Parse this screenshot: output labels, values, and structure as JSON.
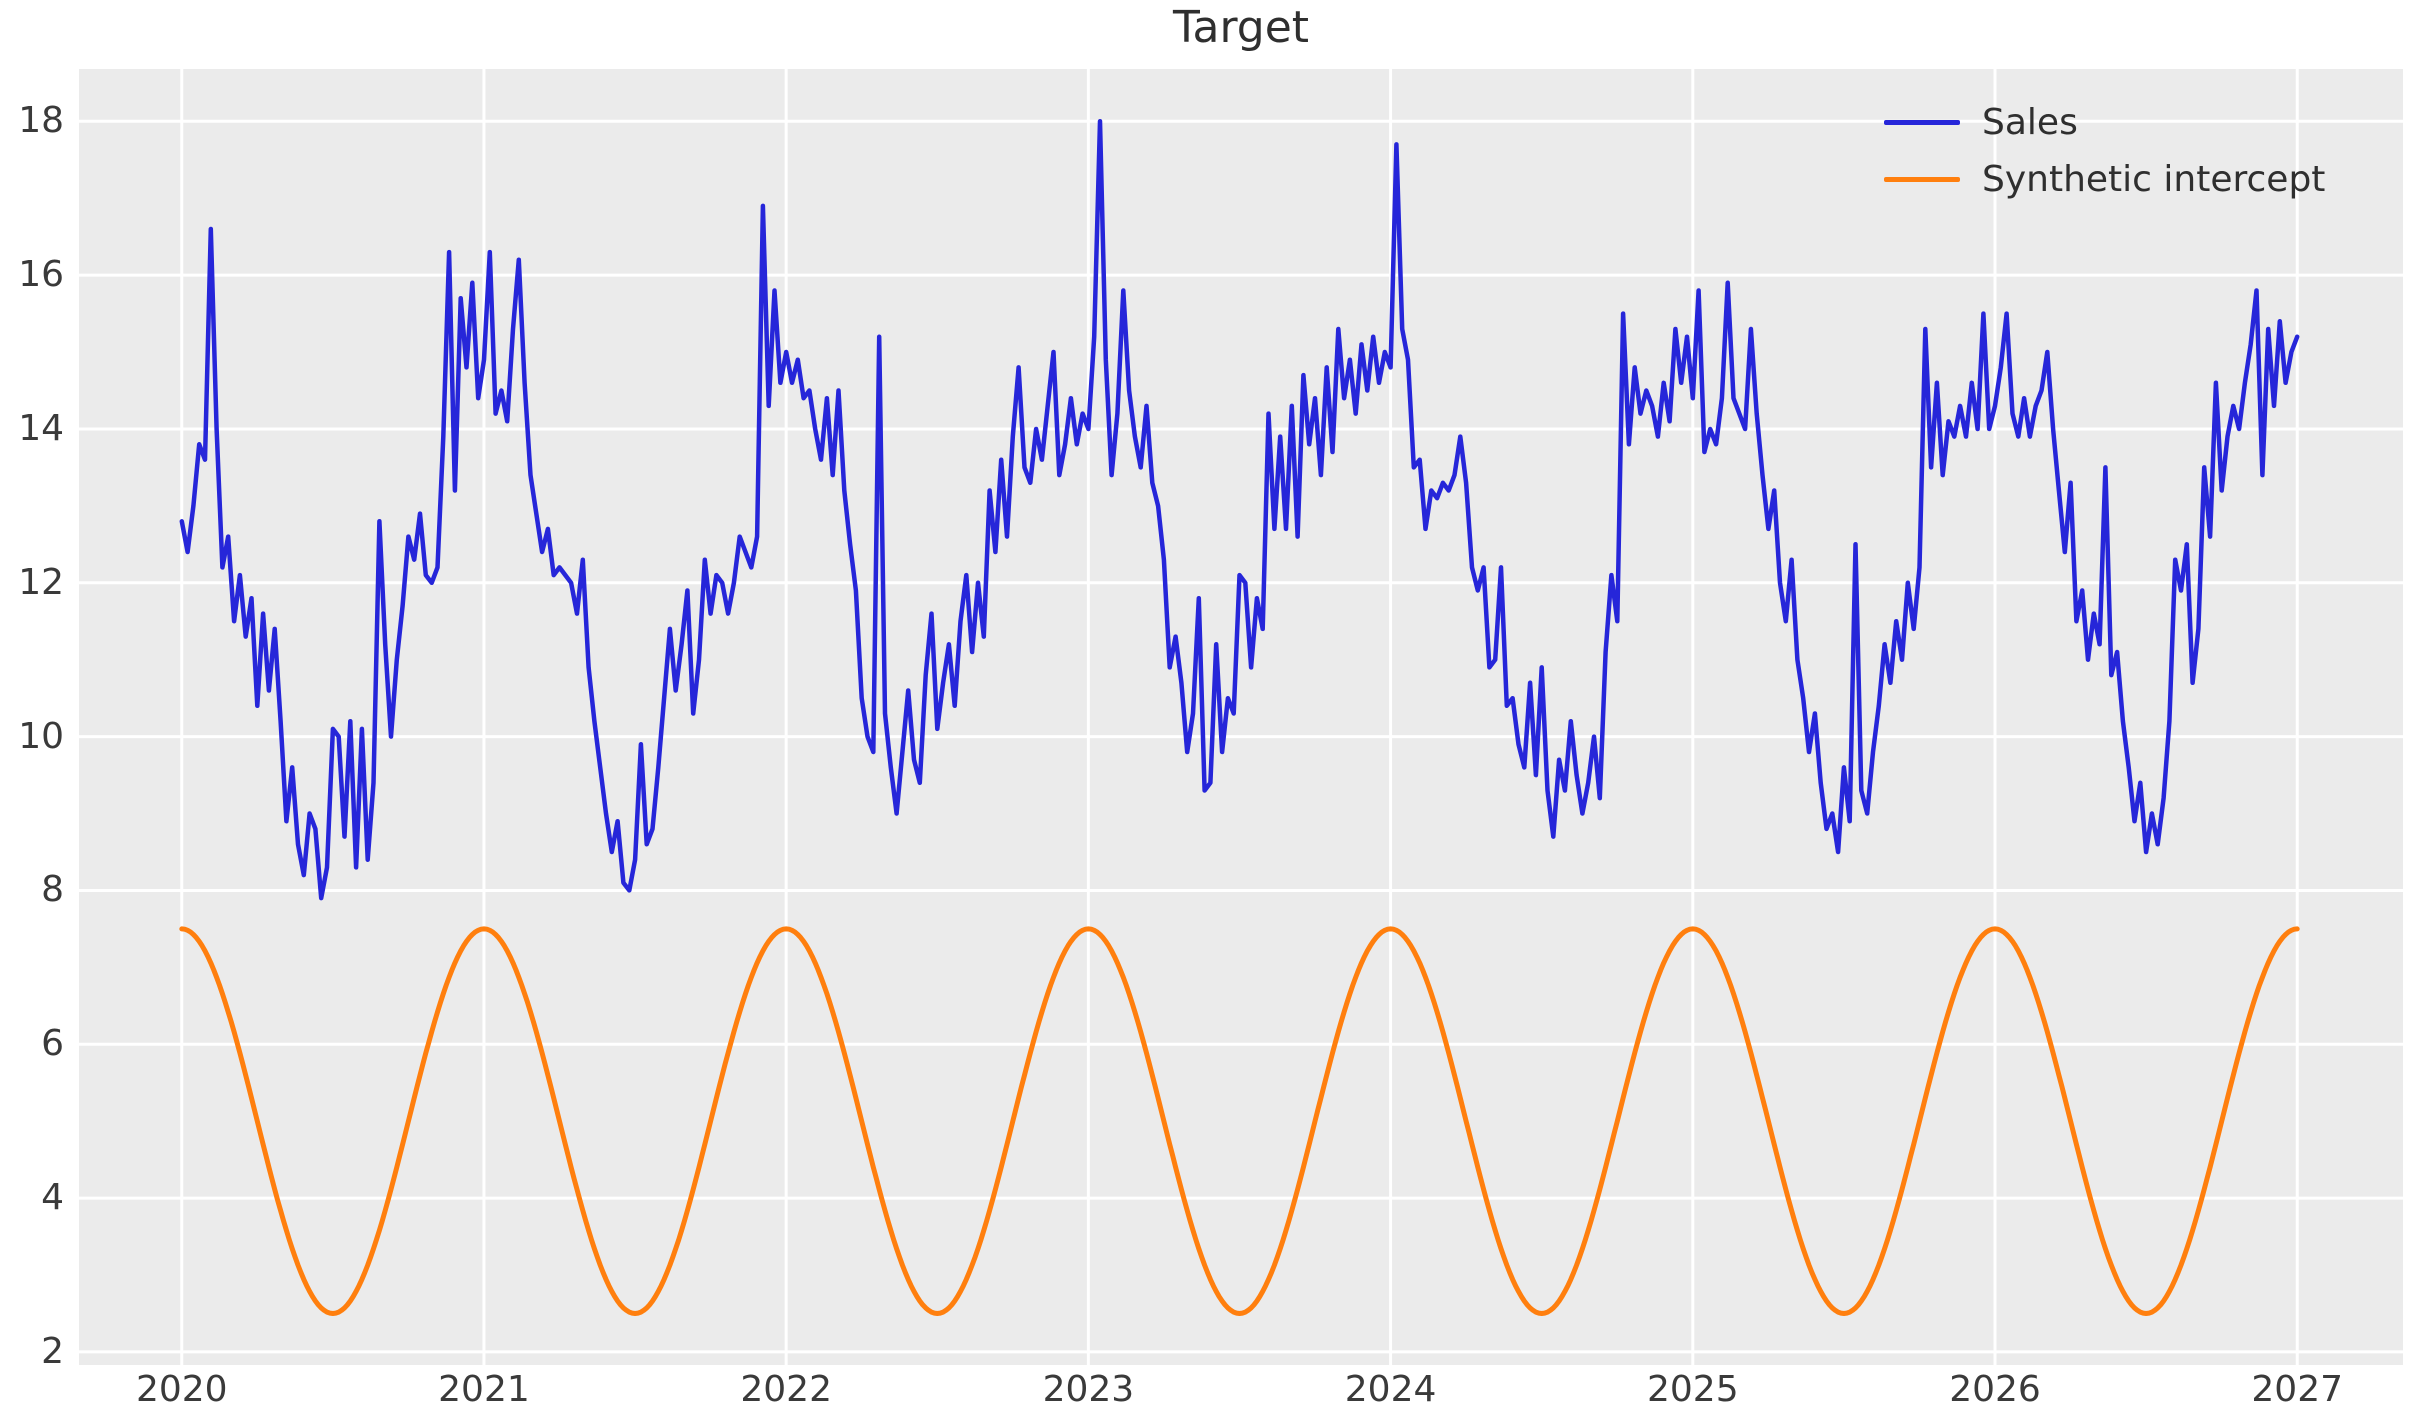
{
  "title": "Target",
  "colors": {
    "sales": "#2626d9",
    "synthetic_intercept": "#ff7f0e",
    "plot_background": "#ebebeb",
    "grid": "#ffffff",
    "tick_label": "#3a3a3a",
    "title_color": "#2f2f2f",
    "figure_background": "#ffffff"
  },
  "legend": {
    "position": "upper right",
    "items": [
      {
        "label": "Sales",
        "color": "#2626d9"
      },
      {
        "label": "Synthetic intercept",
        "color": "#ff7f0e"
      }
    ]
  },
  "chart_data": {
    "type": "line",
    "title": "Target",
    "xlabel": "",
    "ylabel": "",
    "grid": true,
    "legend_position": "upper right",
    "x_tick_labels": [
      2020,
      2021,
      2022,
      2023,
      2024,
      2025,
      2026,
      2027
    ],
    "y_tick_labels": [
      2,
      4,
      6,
      8,
      10,
      12,
      14,
      16,
      18
    ],
    "x_range_years": [
      2019.66,
      2027.35
    ],
    "y_range": [
      1.83,
      18.68
    ],
    "sampling": "weekly samples, x in calendar years",
    "series": [
      {
        "name": "Sales",
        "color": "#2626d9",
        "t_start": 2020.0,
        "t_end": 2027.0,
        "values": [
          12.8,
          12.4,
          13.0,
          13.8,
          13.6,
          16.6,
          14.0,
          12.2,
          12.6,
          11.5,
          12.1,
          11.3,
          11.8,
          10.4,
          11.6,
          10.6,
          11.4,
          10.2,
          8.9,
          9.6,
          8.6,
          8.2,
          9.0,
          8.8,
          7.9,
          8.3,
          10.1,
          10.0,
          8.7,
          10.2,
          8.3,
          10.1,
          8.4,
          9.4,
          12.8,
          11.2,
          10.0,
          11.0,
          11.7,
          12.6,
          12.3,
          12.9,
          12.1,
          12.0,
          12.2,
          13.9,
          16.3,
          13.2,
          15.7,
          14.8,
          15.9,
          14.4,
          14.9,
          16.3,
          14.2,
          14.5,
          14.1,
          15.3,
          16.2,
          14.6,
          13.4,
          12.9,
          12.4,
          12.7,
          12.1,
          12.2,
          12.1,
          12.0,
          11.6,
          12.3,
          10.9,
          10.2,
          9.6,
          9.0,
          8.5,
          8.9,
          8.1,
          8.0,
          8.4,
          9.9,
          8.6,
          8.8,
          9.6,
          10.5,
          11.4,
          10.6,
          11.2,
          11.9,
          10.3,
          11.0,
          12.3,
          11.6,
          12.1,
          12.0,
          11.6,
          12.0,
          12.6,
          12.4,
          12.2,
          12.6,
          16.9,
          14.3,
          15.8,
          14.6,
          15.0,
          14.6,
          14.9,
          14.4,
          14.5,
          14.0,
          13.6,
          14.4,
          13.4,
          14.5,
          13.2,
          12.5,
          11.9,
          10.5,
          10.0,
          9.8,
          15.2,
          10.3,
          9.6,
          9.0,
          9.8,
          10.6,
          9.7,
          9.4,
          10.8,
          11.6,
          10.1,
          10.7,
          11.2,
          10.4,
          11.5,
          12.1,
          11.1,
          12.0,
          11.3,
          13.2,
          12.4,
          13.6,
          12.6,
          13.9,
          14.8,
          13.5,
          13.3,
          14.0,
          13.6,
          14.3,
          15.0,
          13.4,
          13.8,
          14.4,
          13.8,
          14.2,
          14.0,
          15.2,
          18.0,
          14.9,
          13.4,
          14.2,
          15.8,
          14.5,
          13.9,
          13.5,
          14.3,
          13.3,
          13.0,
          12.3,
          10.9,
          11.3,
          10.7,
          9.8,
          10.3,
          11.8,
          9.3,
          9.4,
          11.2,
          9.8,
          10.5,
          10.3,
          12.1,
          12.0,
          10.9,
          11.8,
          11.4,
          14.2,
          12.7,
          13.9,
          12.7,
          14.3,
          12.6,
          14.7,
          13.8,
          14.4,
          13.4,
          14.8,
          13.7,
          15.3,
          14.4,
          14.9,
          14.2,
          15.1,
          14.5,
          15.2,
          14.6,
          15.0,
          14.8,
          17.7,
          15.3,
          14.9,
          13.5,
          13.6,
          12.7,
          13.2,
          13.1,
          13.3,
          13.2,
          13.4,
          13.9,
          13.3,
          12.2,
          11.9,
          12.2,
          10.9,
          11.0,
          12.2,
          10.4,
          10.5,
          9.9,
          9.6,
          10.7,
          9.5,
          10.9,
          9.3,
          8.7,
          9.7,
          9.3,
          10.2,
          9.5,
          9.0,
          9.4,
          10.0,
          9.2,
          11.1,
          12.1,
          11.5,
          15.5,
          13.8,
          14.8,
          14.2,
          14.5,
          14.3,
          13.9,
          14.6,
          14.1,
          15.3,
          14.6,
          15.2,
          14.4,
          15.8,
          13.7,
          14.0,
          13.8,
          14.4,
          15.9,
          14.4,
          14.2,
          14.0,
          15.3,
          14.2,
          13.4,
          12.7,
          13.2,
          12.0,
          11.5,
          12.3,
          11.0,
          10.5,
          9.8,
          10.3,
          9.4,
          8.8,
          9.0,
          8.5,
          9.6,
          8.9,
          12.5,
          9.3,
          9.0,
          9.8,
          10.4,
          11.2,
          10.7,
          11.5,
          11.0,
          12.0,
          11.4,
          12.2,
          15.3,
          13.5,
          14.6,
          13.4,
          14.1,
          13.9,
          14.3,
          13.9,
          14.6,
          14.0,
          15.5,
          14.0,
          14.3,
          14.8,
          15.5,
          14.2,
          13.9,
          14.4,
          13.9,
          14.3,
          14.5,
          15.0,
          14.0,
          13.2,
          12.4,
          13.3,
          11.5,
          11.9,
          11.0,
          11.6,
          11.2,
          13.5,
          10.8,
          11.1,
          10.2,
          9.6,
          8.9,
          9.4,
          8.5,
          9.0,
          8.6,
          9.2,
          10.2,
          12.3,
          11.9,
          12.5,
          10.7,
          11.4,
          13.5,
          12.6,
          14.6,
          13.2,
          13.9,
          14.3,
          14.0,
          14.6,
          15.1,
          15.8,
          13.4,
          15.3,
          14.3,
          15.4,
          14.6,
          15.0,
          15.2
        ]
      },
      {
        "name": "Synthetic intercept",
        "color": "#ff7f0e",
        "model": "cosine",
        "mean": 5.0,
        "amplitude": 2.5,
        "period_years": 1.0,
        "t_start": 2020.0,
        "t_end": 2027.0,
        "min": 2.5,
        "max": 7.5,
        "peaks_at": "year starts"
      }
    ]
  }
}
